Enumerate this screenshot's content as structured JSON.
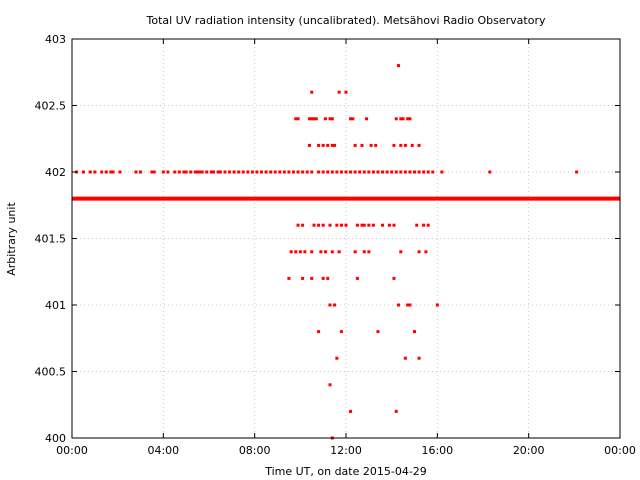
{
  "chart_data": {
    "type": "scatter",
    "title": "Total UV radiation intensity (uncalibrated). Metsähovi Radio Observatory",
    "xlabel": "Time UT, on date 2015-04-29",
    "ylabel": "Arbitrary unit",
    "xlim": [
      0,
      24
    ],
    "ylim": [
      400,
      403
    ],
    "x_tick_values": [
      0,
      4,
      8,
      12,
      16,
      20,
      24
    ],
    "x_tick_labels": [
      "00:00",
      "04:00",
      "08:00",
      "12:00",
      "16:00",
      "20:00",
      "00:00"
    ],
    "y_tick_values": [
      400,
      400.5,
      401,
      401.5,
      402,
      402.5,
      403
    ],
    "y_tick_labels": [
      "400",
      "400.5",
      "401",
      "401.5",
      "402",
      "402.5",
      "403"
    ],
    "grid": true,
    "marker_color": "#ff0000",
    "baseline": {
      "y": 401.8,
      "x_range": [
        0,
        24
      ]
    },
    "row_402": {
      "y": 402.0,
      "x": [
        0.2,
        0.5,
        0.8,
        1.0,
        1.3,
        1.5,
        1.7,
        1.8,
        2.1,
        2.8,
        3.0,
        3.5,
        3.6,
        4.0,
        4.2,
        4.5,
        4.7,
        4.9,
        5.0,
        5.2,
        5.4,
        5.5,
        5.6,
        5.7,
        5.9,
        6.1,
        6.2,
        6.4,
        6.5,
        6.7,
        6.9,
        7.1,
        7.3,
        7.5,
        7.7,
        7.9,
        8.1,
        8.3,
        8.5,
        8.7,
        8.9,
        9.1,
        9.3,
        9.5,
        9.7,
        9.9,
        10.1,
        10.3,
        10.5,
        10.8,
        11.0,
        11.2,
        11.4,
        11.6,
        11.8,
        12.0,
        12.2,
        12.4,
        12.6,
        12.8,
        13.0,
        13.2,
        13.4,
        13.6,
        13.8,
        14.0,
        14.2,
        14.4,
        14.6,
        14.8,
        15.0,
        15.2,
        15.4,
        15.6,
        15.8,
        16.2,
        18.3,
        22.1
      ]
    },
    "series": [
      {
        "x": [
          10.5,
          11.7,
          12.0,
          14.3,
          9.8,
          9.9,
          10.4,
          10.5,
          10.6,
          10.7,
          11.1,
          11.3,
          11.4,
          12.2,
          12.3,
          12.9,
          14.2,
          14.4,
          14.5,
          14.7,
          14.8,
          10.4,
          10.8,
          11.0,
          11.2,
          11.4,
          11.5,
          12.4,
          12.7,
          13.1,
          13.3,
          14.1,
          14.4,
          14.6,
          14.9,
          15.2,
          9.9,
          10.1,
          10.6,
          10.8,
          11.0,
          11.3,
          11.6,
          11.8,
          12.0,
          12.5,
          12.7,
          12.8,
          13.0,
          13.2,
          13.6,
          13.9,
          14.1,
          15.1,
          15.4,
          15.6,
          9.6,
          9.8,
          10.0,
          10.2,
          10.5,
          10.9,
          11.1,
          11.4,
          11.7,
          12.4,
          12.8,
          13.0,
          14.4,
          15.2,
          15.5,
          9.5,
          10.1,
          10.5,
          11.0,
          11.2,
          12.5,
          14.1,
          11.3,
          11.5,
          14.3,
          14.7,
          14.8,
          16.0,
          10.8,
          11.8,
          13.4,
          15.0,
          11.6,
          14.6,
          15.2,
          11.3,
          12.2,
          14.2,
          11.4
        ],
        "y": [
          402.6,
          402.6,
          402.6,
          402.8,
          402.4,
          402.4,
          402.4,
          402.4,
          402.4,
          402.4,
          402.4,
          402.4,
          402.4,
          402.4,
          402.4,
          402.4,
          402.4,
          402.4,
          402.4,
          402.4,
          402.4,
          402.2,
          402.2,
          402.2,
          402.2,
          402.2,
          402.2,
          402.2,
          402.2,
          402.2,
          402.2,
          402.2,
          402.2,
          402.2,
          402.2,
          402.2,
          401.6,
          401.6,
          401.6,
          401.6,
          401.6,
          401.6,
          401.6,
          401.6,
          401.6,
          401.6,
          401.6,
          401.6,
          401.6,
          401.6,
          401.6,
          401.6,
          401.6,
          401.6,
          401.6,
          401.6,
          401.4,
          401.4,
          401.4,
          401.4,
          401.4,
          401.4,
          401.4,
          401.4,
          401.4,
          401.4,
          401.4,
          401.4,
          401.4,
          401.4,
          401.4,
          401.2,
          401.2,
          401.2,
          401.2,
          401.2,
          401.2,
          401.2,
          401.0,
          401.0,
          401.0,
          401.0,
          401.0,
          401.0,
          400.8,
          400.8,
          400.8,
          400.8,
          400.6,
          400.6,
          400.6,
          400.4,
          400.2,
          400.2,
          400.0
        ]
      }
    ]
  }
}
